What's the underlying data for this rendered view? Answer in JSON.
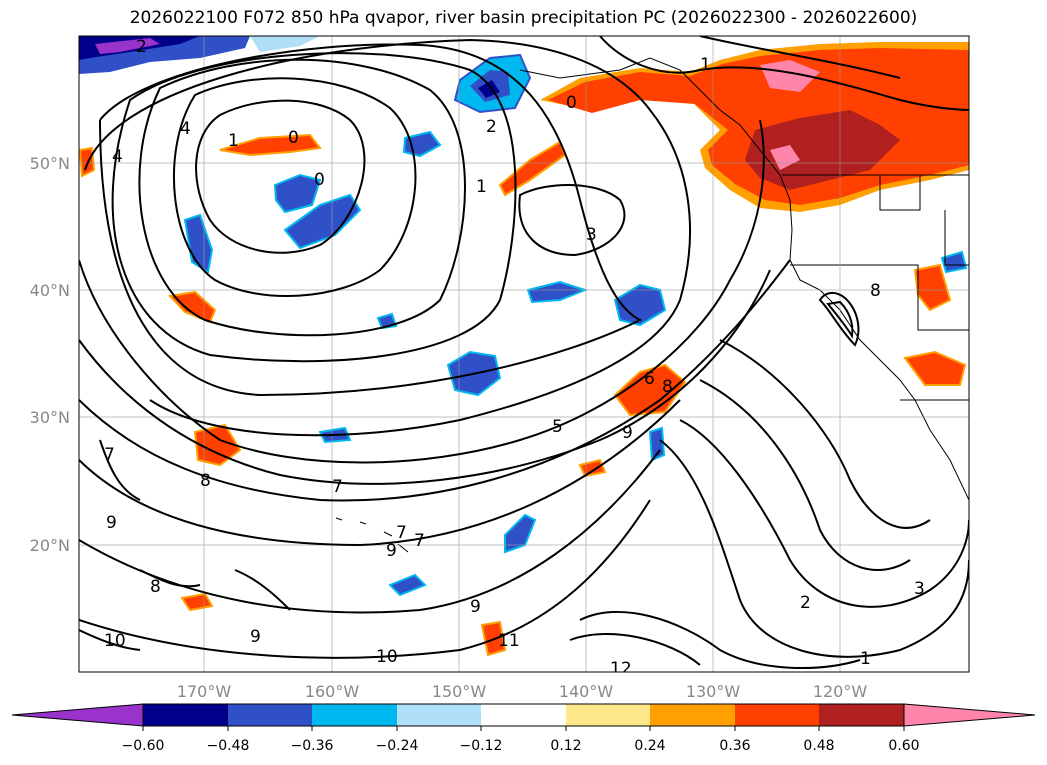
{
  "title": "2026022100 F072 850 hPa qvapor, river basin precipitation PC (2026022300 - 2026022600)",
  "map": {
    "lon_labels": [
      "170°W",
      "160°W",
      "150°W",
      "140°W",
      "130°W",
      "120°W"
    ],
    "lat_labels": [
      "50°N",
      "40°N",
      "30°N",
      "20°N"
    ],
    "contour_labels": [
      "2",
      "4",
      "4",
      "1",
      "0",
      "0",
      "2",
      "1",
      "0",
      "1",
      "3",
      "6",
      "8",
      "5",
      "9",
      "7",
      "8",
      "7",
      "9",
      "7",
      "7",
      "9",
      "8",
      "9",
      "10",
      "10",
      "11",
      "9",
      "2",
      "3",
      "1",
      "12",
      "8"
    ]
  },
  "colorbar": {
    "labels": [
      "−0.60",
      "−0.48",
      "−0.36",
      "−0.24",
      "−0.12",
      "0.12",
      "0.24",
      "0.36",
      "0.48",
      "0.60"
    ],
    "colors": [
      "#9a33cc",
      "#00008b",
      "#3050c8",
      "#00b8f0",
      "#b0e0f8",
      "#ffffff",
      "#fde98c",
      "#ffa000",
      "#ff4000",
      "#b02020",
      "#ff85aa"
    ]
  },
  "fill_colors": {
    "pink": "#ff85aa",
    "darkred": "#b02020",
    "red": "#ff4000",
    "orange": "#ffa000",
    "yellow": "#fde98c",
    "lightblue": "#b0e0f8",
    "cyan": "#00b8f0",
    "blue": "#3050c8",
    "navy": "#00008b",
    "purple": "#9a33cc"
  }
}
